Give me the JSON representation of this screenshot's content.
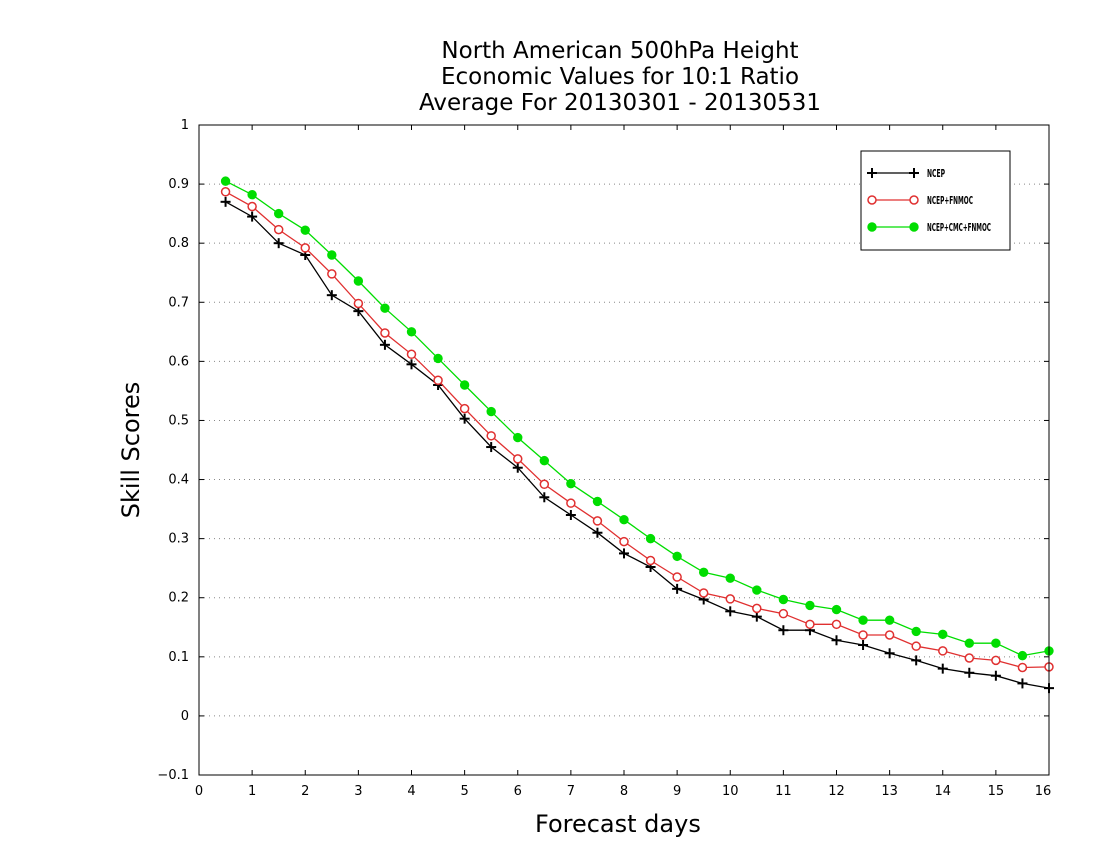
{
  "chart_data": {
    "type": "line",
    "title_lines": [
      "North American 500hPa Height",
      "Economic Values for 10:1 Ratio",
      "Average For 20130301 - 20130531"
    ],
    "xlabel": "Forecast days",
    "ylabel": "Skill Scores",
    "xlim": [
      0,
      16
    ],
    "ylim": [
      -0.1,
      1
    ],
    "x_ticks": [
      "0",
      "1",
      "2",
      "3",
      "4",
      "5",
      "6",
      "7",
      "8",
      "9",
      "10",
      "11",
      "12",
      "13",
      "14",
      "15",
      "16"
    ],
    "y_ticks": [
      "−0.1",
      "0",
      "0.1",
      "0.2",
      "0.3",
      "0.4",
      "0.5",
      "0.6",
      "0.7",
      "0.8",
      "0.9",
      "1"
    ],
    "grid": "horizontal-dotted",
    "legend_position": "top-right",
    "x": [
      0.5,
      1,
      1.5,
      2,
      2.5,
      3,
      3.5,
      4,
      4.5,
      5,
      5.5,
      6,
      6.5,
      7,
      7.5,
      8,
      8.5,
      9,
      9.5,
      10,
      10.5,
      11,
      11.5,
      12,
      12.5,
      13,
      13.5,
      14,
      14.5,
      15,
      15.5,
      16
    ],
    "series": [
      {
        "name": "NCEP",
        "color": "#000000",
        "marker": "plus",
        "values": [
          0.87,
          0.845,
          0.8,
          0.78,
          0.712,
          0.685,
          0.628,
          0.595,
          0.56,
          0.503,
          0.455,
          0.42,
          0.37,
          0.34,
          0.31,
          0.275,
          0.252,
          0.215,
          0.197,
          0.177,
          0.168,
          0.145,
          0.145,
          0.128,
          0.12,
          0.106,
          0.094,
          0.08,
          0.073,
          0.068,
          0.055,
          0.047
        ]
      },
      {
        "name": "NCEP+FNMOC",
        "color": "#e03030",
        "marker": "open-circle",
        "values": [
          0.887,
          0.862,
          0.823,
          0.792,
          0.748,
          0.698,
          0.648,
          0.612,
          0.568,
          0.52,
          0.474,
          0.435,
          0.392,
          0.36,
          0.33,
          0.295,
          0.263,
          0.235,
          0.208,
          0.198,
          0.182,
          0.173,
          0.155,
          0.155,
          0.137,
          0.137,
          0.118,
          0.11,
          0.098,
          0.094,
          0.082,
          0.083
        ]
      },
      {
        "name": "NCEP+CMC+FNMOC",
        "color": "#00dd00",
        "marker": "filled-circle",
        "values": [
          0.905,
          0.882,
          0.85,
          0.822,
          0.78,
          0.736,
          0.69,
          0.65,
          0.605,
          0.56,
          0.515,
          0.471,
          0.432,
          0.393,
          0.363,
          0.332,
          0.3,
          0.27,
          0.243,
          0.233,
          0.213,
          0.197,
          0.187,
          0.18,
          0.162,
          0.162,
          0.143,
          0.138,
          0.123,
          0.123,
          0.102,
          0.11
        ]
      }
    ]
  }
}
